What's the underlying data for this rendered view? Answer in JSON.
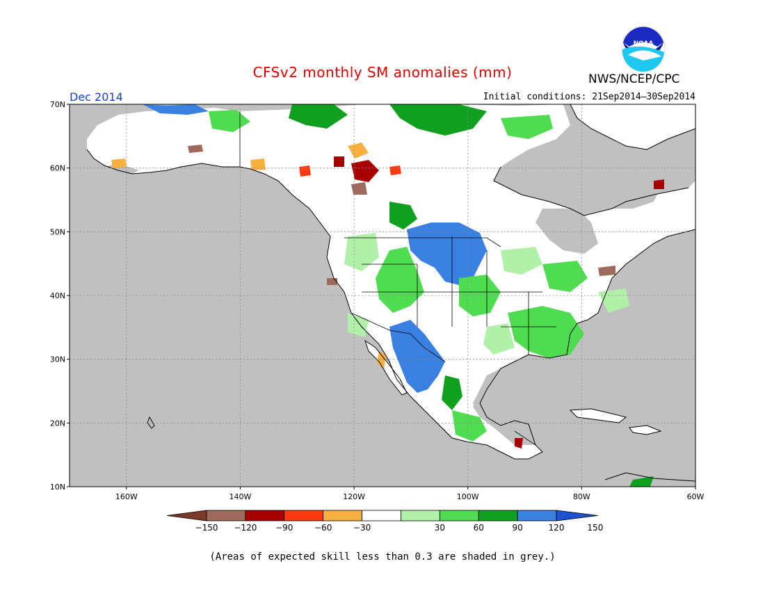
{
  "title": "CFSv2 monthly SM anomalies (mm)",
  "agency": "NWS/NCEP/CPC",
  "valid_month": "Dec 2014",
  "initial_conditions": "Initial conditions: 21Sep2014–30Sep2014",
  "footnote": "(Areas of expected skill less than 0.3 are shaded in grey.)",
  "logo": {
    "icon": "noaa-logo",
    "text": "NOAA"
  },
  "lat_labels": [
    "70N",
    "60N",
    "50N",
    "40N",
    "30N",
    "20N",
    "10N"
  ],
  "lon_labels": [
    "160W",
    "140W",
    "120W",
    "100W",
    "80W",
    "60W"
  ],
  "colorbar": {
    "ticks": [
      "−150",
      "−120",
      "−90",
      "−60",
      "−30",
      "30",
      "60",
      "90",
      "120",
      "150"
    ],
    "colors": [
      "#7a3a2a",
      "#9e6a5e",
      "#a80000",
      "#ff3a10",
      "#f8b040",
      "#ffffff",
      "#b0f0a8",
      "#50dc50",
      "#10a020",
      "#3a80e0",
      "#1e50d0"
    ]
  },
  "colors": {
    "title": "#e00000",
    "valid_month": "#1a3ccf",
    "land_grey": "#c0c0c0",
    "ocean": "#ffffff"
  }
}
